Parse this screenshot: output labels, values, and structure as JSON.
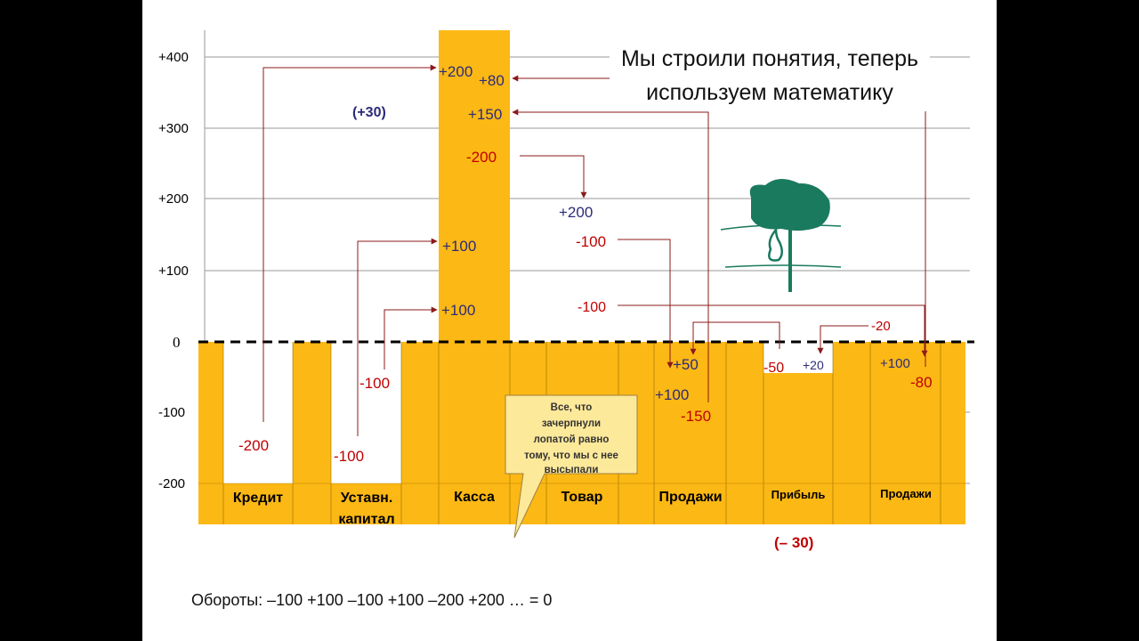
{
  "title": {
    "line1": "Мы строили понятия, теперь",
    "line2": "используем математику"
  },
  "axis": {
    "ticks": [
      "+400",
      "+300",
      "+200",
      "+100",
      "0",
      "-100",
      "-200"
    ]
  },
  "columns": [
    "Кредит",
    "Уставн.",
    "капитал",
    "Касса",
    "Товар",
    "Продажи",
    "Прибыль",
    "Продажи"
  ],
  "values": {
    "kassa_plus200": "+200",
    "kassa_plus80": "+80",
    "plus30": "(+30)",
    "kassa_plus150": "+150",
    "kassa_minus200": "-200",
    "tovar_plus200": "+200",
    "kassa_plus100_a": "+100",
    "kassa_plus100_b": "+100",
    "tovar_minus100_a": "-100",
    "tovar_minus100_b": "-100",
    "kredit_minus200": "-200",
    "ustav_minus100": "-100",
    "ustav_minus100_b": "-100",
    "prod_plus50": "+50",
    "prod_plus100": "+100",
    "prod_minus150": "-150",
    "prib_minus50": "-50",
    "prib_plus20": "+20",
    "prib_minus20": "-20",
    "prod2_plus100": "+100",
    "prod2_minus80": "-80",
    "minus30": "(– 30)"
  },
  "callout": {
    "lines": [
      "Все, что",
      "зачерпнули",
      "лопатой равно",
      "тому, что мы с нее",
      "высыпали"
    ]
  },
  "footer": "Обороты: –100 +100 –100 +100 –200 +200 … =  0",
  "colors": {
    "accent": "#fcb814",
    "line": "#8b1a1a",
    "blue": "#2b2b7a",
    "red": "#c00000",
    "tree": "#1a7a5e"
  }
}
